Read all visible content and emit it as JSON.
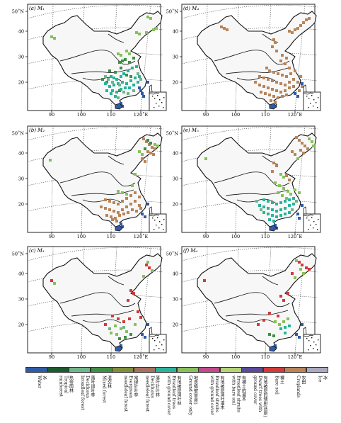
{
  "map": {
    "lon_labels": [
      "90",
      "100",
      "110",
      "120˚E"
    ],
    "lat_labels": [
      "50˚N",
      "40",
      "30",
      "20"
    ],
    "colors": {
      "water": "#2f5aa7",
      "tropical_rainforest": "#1d5a2e",
      "deciduous_broadleaf": "#6fb58a",
      "mixed_forest": "#3e8e46",
      "evergreen_needleleaf": "#7f8e3a",
      "deciduous_needleleaf": "#a57060",
      "broadleaf_groundcover": "#2bb39a",
      "ground_cover_only": "#86c05a",
      "broadleaf_shrubs": "#c04a8a",
      "broadleaf_shrubs_bare": "#b4d474",
      "dwarf_trees": "#5b4a9a",
      "bare_soil": "#d13a3a",
      "croplands": "#b8845a",
      "ice": "#a9a9c0"
    }
  },
  "panels": [
    {
      "id": "a",
      "label": "(a) M₁",
      "cover": "a"
    },
    {
      "id": "d",
      "label": "(d) M₄",
      "cover": "d"
    },
    {
      "id": "b",
      "label": "(b) M₂",
      "cover": "b"
    },
    {
      "id": "e",
      "label": "(e) M₅",
      "cover": "e"
    },
    {
      "id": "c",
      "label": "(c) M₃",
      "cover": "c"
    },
    {
      "id": "f",
      "label": "(f) M₆",
      "cover": "f"
    }
  ],
  "legend": {
    "items": [
      {
        "cn": "水",
        "en": "Water",
        "color": "#2f5aa7"
      },
      {
        "cn": "热带雨林",
        "en": "Tropical\nrainforest",
        "color": "#1d5a2e"
      },
      {
        "cn": "落叶阔叶林",
        "en": "Deciduous\nbroadleaf forest",
        "color": "#6fb58a"
      },
      {
        "cn": "混交林",
        "en": "Mixed forest",
        "color": "#3e8e46"
      },
      {
        "cn": "常绿针叶林",
        "en": "Evergreen\nneedleleaf forest",
        "color": "#7f8e3a"
      },
      {
        "cn": "落叶针叶林",
        "en": "Deciduous\nneedleleaf forest",
        "color": "#a57060"
      },
      {
        "cn": "有地被层阔叶林",
        "en": "Broadleaf trees\nwith ground cover",
        "color": "#2bb39a"
      },
      {
        "cn": "地表植被(草原)",
        "en": "Ground cover only",
        "color": "#86c05a"
      },
      {
        "cn": "有地被层阔叶灌木",
        "en": "Broadleaf shrubs\nwith ground cover",
        "color": "#c04a8a"
      },
      {
        "cn": "有裸土的灌木",
        "en": "Broadleaf shrubs\nwith bare soil",
        "color": "#b4d474"
      },
      {
        "cn": "有地被层的矮树(苔原)",
        "en": "Dwarf trees with\nground cover",
        "color": "#5b4a9a"
      },
      {
        "cn": "裸土",
        "en": "Bare soil",
        "color": "#d13a3a"
      },
      {
        "cn": "农田",
        "en": "Croplands",
        "color": "#b8845a"
      },
      {
        "cn": "冰",
        "en": "Ice",
        "color": "#a9a9c0"
      }
    ]
  }
}
